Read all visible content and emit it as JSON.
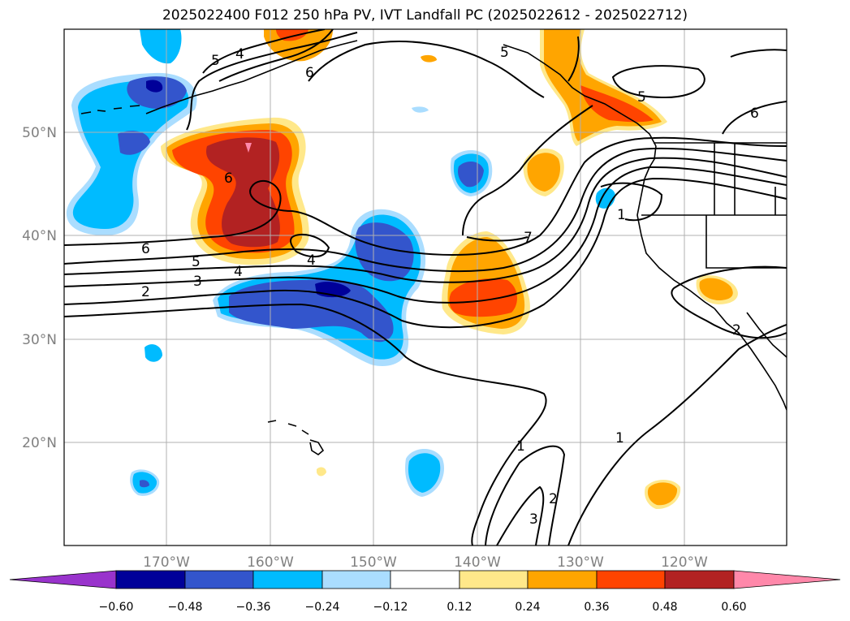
{
  "title": "2025022400 F012 250 hPa PV, IVT Landfall PC (2025022612 - 2025022712)",
  "lon_ticks": [
    "170°W",
    "160°W",
    "150°W",
    "140°W",
    "130°W",
    "120°W"
  ],
  "lat_ticks": [
    "50°N",
    "40°N",
    "30°N",
    "20°N"
  ],
  "colorbar": {
    "tick_labels": [
      "−0.60",
      "−0.48",
      "−0.36",
      "−0.24",
      "−0.12",
      "0.12",
      "0.24",
      "0.36",
      "0.48",
      "0.60"
    ],
    "colors": [
      "#9933cc",
      "#000099",
      "#3355cc",
      "#00bbff",
      "#aaddff",
      "#ffffff",
      "#ffe88a",
      "#ffa500",
      "#ff4400",
      "#b22222",
      "#ff88aa"
    ]
  },
  "contour_labels": [
    "6",
    "5",
    "4",
    "3",
    "2",
    "4",
    "6",
    "4",
    "5",
    "6",
    "5",
    "5",
    "6",
    "7",
    "1",
    "2",
    "1",
    "2",
    "3",
    "1"
  ],
  "colors": {
    "contour": "#000000",
    "grid": "#b0b0b0",
    "coast": "#000000"
  }
}
